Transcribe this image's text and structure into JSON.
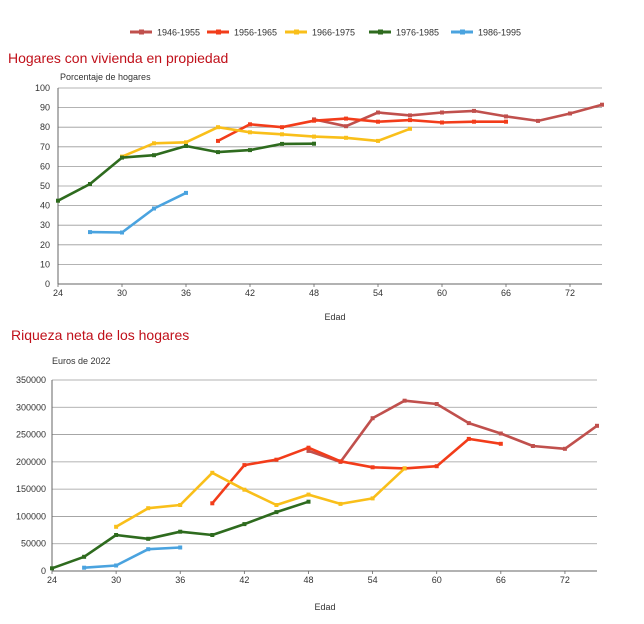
{
  "legend": [
    {
      "name": "1946-1955",
      "color": "#c0504d"
    },
    {
      "name": "1956-1965",
      "color": "#f23c1a"
    },
    {
      "name": "1966-1975",
      "color": "#f9bf1a"
    },
    {
      "name": "1976-1985",
      "color": "#2e6b1e"
    },
    {
      "name": "1986-1995",
      "color": "#4aa3df"
    }
  ],
  "chart_data": [
    {
      "type": "line",
      "title": "Hogares con vivienda en propiedad",
      "ylabel": "Porcentaje de hogares",
      "xlabel": "Edad",
      "xlim": [
        24,
        75
      ],
      "ylim": [
        0,
        100
      ],
      "xticks": [
        24,
        30,
        36,
        42,
        48,
        54,
        60,
        66,
        72
      ],
      "yticks": [
        0,
        10,
        20,
        30,
        40,
        50,
        60,
        70,
        80,
        90,
        100
      ],
      "series": [
        {
          "name": "1946-1955",
          "color": "#c0504d",
          "x": [
            48,
            51,
            54,
            57,
            60,
            63,
            66,
            69,
            72,
            75
          ],
          "y": [
            84,
            80.5,
            87.5,
            86,
            87.5,
            88.3,
            85.5,
            83.2,
            87,
            91.5
          ]
        },
        {
          "name": "1956-1965",
          "color": "#f23c1a",
          "x": [
            39,
            42,
            45,
            48,
            51,
            54,
            57,
            60,
            63,
            66
          ],
          "y": [
            73,
            81.5,
            80,
            83.3,
            84.4,
            82.8,
            83.6,
            82.4,
            82.8,
            82.8
          ]
        },
        {
          "name": "1966-1975",
          "color": "#f9bf1a",
          "x": [
            30,
            33,
            36,
            39,
            42,
            45,
            48,
            51,
            54,
            57
          ],
          "y": [
            65,
            71.8,
            72.3,
            80,
            77.4,
            76.4,
            75.2,
            74.6,
            73,
            79.2
          ]
        },
        {
          "name": "1976-1985",
          "color": "#2e6b1e",
          "x": [
            24,
            27,
            30,
            33,
            36,
            39,
            42,
            45,
            48
          ],
          "y": [
            42.5,
            51,
            64.5,
            65.7,
            70.4,
            67.3,
            68.3,
            71.5,
            71.6
          ]
        },
        {
          "name": "1986-1995",
          "color": "#4aa3df",
          "x": [
            27,
            30,
            33,
            36
          ],
          "y": [
            26.5,
            26.3,
            38.5,
            46.5
          ]
        }
      ]
    },
    {
      "type": "line",
      "title": "Riqueza neta de los hogares",
      "ylabel": "Euros de 2022",
      "xlabel": "Edad",
      "xlim": [
        24,
        75
      ],
      "ylim": [
        0,
        350000
      ],
      "xticks": [
        24,
        30,
        36,
        42,
        48,
        54,
        60,
        66,
        72
      ],
      "yticks": [
        0,
        50000,
        100000,
        150000,
        200000,
        250000,
        300000,
        350000
      ],
      "series": [
        {
          "name": "1946-1955",
          "color": "#c0504d",
          "x": [
            48,
            51,
            54,
            57,
            60,
            63,
            66,
            69,
            72,
            75
          ],
          "y": [
            220000,
            200000,
            280000,
            312000,
            306000,
            271000,
            252000,
            229000,
            224000,
            266000
          ]
        },
        {
          "name": "1956-1965",
          "color": "#f23c1a",
          "x": [
            39,
            42,
            45,
            48,
            51,
            54,
            57,
            60,
            63,
            66
          ],
          "y": [
            124000,
            194000,
            204000,
            226000,
            201000,
            190000,
            188000,
            192000,
            242000,
            233000
          ]
        },
        {
          "name": "1966-1975",
          "color": "#f9bf1a",
          "x": [
            30,
            33,
            36,
            39,
            42,
            45,
            48,
            51,
            54,
            57
          ],
          "y": [
            81000,
            115000,
            121000,
            180000,
            149000,
            121000,
            140000,
            123000,
            133000,
            188000
          ]
        },
        {
          "name": "1976-1985",
          "color": "#2e6b1e",
          "x": [
            24,
            27,
            30,
            33,
            36,
            39,
            42,
            45,
            48
          ],
          "y": [
            5000,
            26000,
            66000,
            59000,
            72000,
            66000,
            86000,
            108000,
            127000
          ]
        },
        {
          "name": "1986-1995",
          "color": "#4aa3df",
          "x": [
            27,
            30,
            33,
            36
          ],
          "y": [
            6000,
            10000,
            40000,
            43000
          ]
        }
      ]
    }
  ]
}
